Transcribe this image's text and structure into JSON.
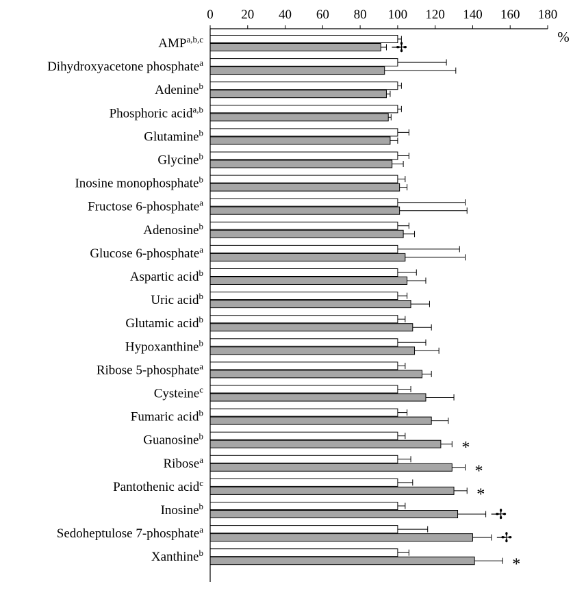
{
  "chart_data": {
    "type": "bar",
    "orientation": "horizontal",
    "x_ticks": [
      "0",
      "20",
      "40",
      "60",
      "80",
      "100",
      "120",
      "140",
      "160",
      "180"
    ],
    "xlim": [
      0,
      180
    ],
    "xunit": "%",
    "grid": false,
    "legend": "none",
    "colors": {
      "control": "#ffffff",
      "treated": "#a6a6a6",
      "stroke": "#000000"
    },
    "categories": [
      {
        "name": "AMP",
        "sup": "a,b,c",
        "control": 100,
        "control_err": 2,
        "treated": 91,
        "treated_err": 3,
        "mark": "✢"
      },
      {
        "name": "Dihydroxyacetone phosphate",
        "sup": "a",
        "control": 100,
        "control_err": 26,
        "treated": 93,
        "treated_err": 38,
        "mark": ""
      },
      {
        "name": "Adenine",
        "sup": "b",
        "control": 100,
        "control_err": 2,
        "treated": 94,
        "treated_err": 2,
        "mark": ""
      },
      {
        "name": "Phosphoric acid",
        "sup": "a,b",
        "control": 100,
        "control_err": 2,
        "treated": 95,
        "treated_err": 1.5,
        "mark": ""
      },
      {
        "name": "Glutamine",
        "sup": "b",
        "control": 100,
        "control_err": 6,
        "treated": 96,
        "treated_err": 4,
        "mark": ""
      },
      {
        "name": "Glycine",
        "sup": "b",
        "control": 100,
        "control_err": 6,
        "treated": 97,
        "treated_err": 6,
        "mark": ""
      },
      {
        "name": "Inosine monophosphate",
        "sup": "b",
        "control": 100,
        "control_err": 4,
        "treated": 101,
        "treated_err": 4,
        "mark": ""
      },
      {
        "name": "Fructose 6-phosphate",
        "sup": "a",
        "control": 100,
        "control_err": 36,
        "treated": 101,
        "treated_err": 36,
        "mark": ""
      },
      {
        "name": "Adenosine",
        "sup": "b",
        "control": 100,
        "control_err": 6,
        "treated": 103,
        "treated_err": 6,
        "mark": ""
      },
      {
        "name": "Glucose 6-phosphate",
        "sup": "a",
        "control": 100,
        "control_err": 33,
        "treated": 104,
        "treated_err": 32,
        "mark": ""
      },
      {
        "name": "Aspartic acid",
        "sup": "b",
        "control": 100,
        "control_err": 10,
        "treated": 105,
        "treated_err": 10,
        "mark": ""
      },
      {
        "name": "Uric acid",
        "sup": "b",
        "control": 100,
        "control_err": 5,
        "treated": 107,
        "treated_err": 10,
        "mark": ""
      },
      {
        "name": "Glutamic acid",
        "sup": "b",
        "control": 100,
        "control_err": 4,
        "treated": 108,
        "treated_err": 10,
        "mark": ""
      },
      {
        "name": "Hypoxanthine",
        "sup": "b",
        "control": 100,
        "control_err": 15,
        "treated": 109,
        "treated_err": 13,
        "mark": ""
      },
      {
        "name": "Ribose 5-phosphate",
        "sup": "a",
        "control": 100,
        "control_err": 4,
        "treated": 113,
        "treated_err": 5,
        "mark": ""
      },
      {
        "name": "Cysteine",
        "sup": "c",
        "control": 100,
        "control_err": 7,
        "treated": 115,
        "treated_err": 15,
        "mark": ""
      },
      {
        "name": "Fumaric acid",
        "sup": "b",
        "control": 100,
        "control_err": 5,
        "treated": 118,
        "treated_err": 9,
        "mark": ""
      },
      {
        "name": "Guanosine",
        "sup": "b",
        "control": 100,
        "control_err": 4,
        "treated": 123,
        "treated_err": 6,
        "mark": "*"
      },
      {
        "name": "Ribose",
        "sup": "a",
        "control": 100,
        "control_err": 7,
        "treated": 129,
        "treated_err": 7,
        "mark": "*"
      },
      {
        "name": "Pantothenic acid",
        "sup": "c",
        "control": 100,
        "control_err": 8,
        "treated": 130,
        "treated_err": 7,
        "mark": "*"
      },
      {
        "name": "Inosine",
        "sup": "b",
        "control": 100,
        "control_err": 4,
        "treated": 132,
        "treated_err": 15,
        "mark": "✢"
      },
      {
        "name": "Sedoheptulose 7-phosphate",
        "sup": "a",
        "control": 100,
        "control_err": 16,
        "treated": 140,
        "treated_err": 10,
        "mark": "✢"
      },
      {
        "name": "Xanthine",
        "sup": "b",
        "control": 100,
        "control_err": 6,
        "treated": 141,
        "treated_err": 15,
        "mark": "*"
      }
    ]
  }
}
